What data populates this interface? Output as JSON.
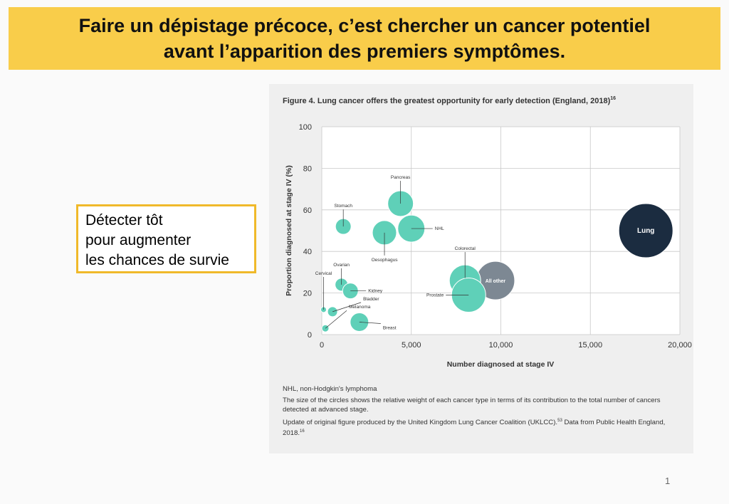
{
  "header": {
    "title_lines": [
      "Faire un dépistage précoce, c’est chercher un cancer potentiel",
      "avant l’apparition des premiers symptômes."
    ]
  },
  "callout": {
    "lines": [
      "Détecter tôt",
      "pour augmenter",
      "les chances de survie"
    ]
  },
  "chart_data": {
    "type": "bubble",
    "title": "Figure 4. Lung cancer offers the greatest opportunity for early detection (England, 2018)",
    "title_ref": "16",
    "x_label": "Number diagnosed at stage IV",
    "y_label": "Proportion diagnosed at stage IV (%)",
    "xlim": [
      0,
      20000
    ],
    "xticks": [
      0,
      {
        "value": 5000,
        "label": "5,000"
      },
      {
        "value": 10000,
        "label": "10,000"
      },
      {
        "value": 15000,
        "label": "15,000"
      },
      {
        "value": 20000,
        "label": "20,000"
      }
    ],
    "ylim": [
      0,
      100
    ],
    "yticks": [
      0,
      20,
      40,
      60,
      80,
      100
    ],
    "grid": true,
    "labels": [
      "Lung",
      "All other",
      "Colorectal",
      "Prostate",
      "Pancreas",
      "NHL",
      "Oesophagus",
      "Stomach",
      "Ovarian",
      "Kidney",
      "Cervical",
      "Bladder",
      "Melanoma",
      "Breast"
    ],
    "x": [
      18100,
      9700,
      8000,
      8200,
      4400,
      5000,
      3500,
      1200,
      1100,
      1600,
      100,
      600,
      200,
      2100
    ],
    "y": [
      50,
      26,
      26,
      19,
      63,
      51,
      49,
      52,
      24,
      21,
      12,
      11,
      3,
      6
    ],
    "sizes": [
      1444,
      729,
      484,
      576,
      324,
      361,
      289,
      121,
      81,
      121,
      16,
      49,
      25,
      169
    ],
    "colors": [
      "#1b2c40",
      "#7d8893",
      "#5fd0b8",
      "#5fd0b8",
      "#5fd0b8",
      "#5fd0b8",
      "#5fd0b8",
      "#5fd0b8",
      "#5fd0b8",
      "#5fd0b8",
      "#5fd0b8",
      "#5fd0b8",
      "#5fd0b8",
      "#5fd0b8"
    ],
    "notes": [
      "NHL, non-Hodgkin's lymphoma",
      "The size of the circles shows the relative weight of each cancer type in terms of its contribution to the total number of cancers detected at advanced stage."
    ],
    "source": "Update of original figure produced by the United Kingdom Lung Cancer Coalition (UKLCC).",
    "source_ref": "53",
    "source_tail": "Data from Public Health England, 2018.",
    "source_tail_ref": "16"
  },
  "page_number": "1"
}
